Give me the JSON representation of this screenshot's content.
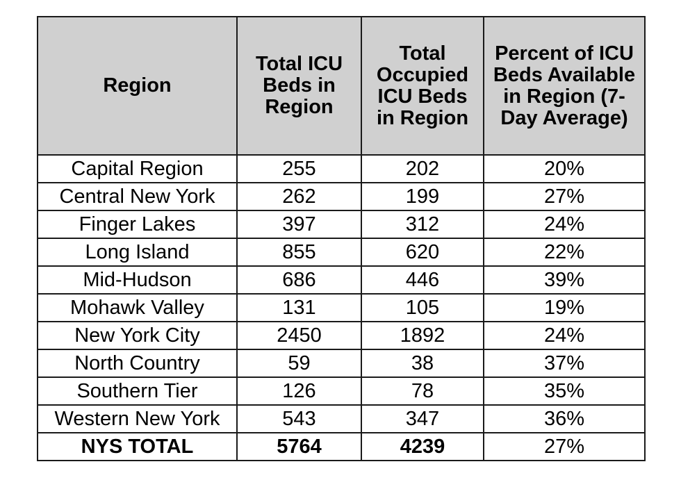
{
  "table": {
    "headers": [
      "Region",
      "Total ICU Beds in Region",
      "Total Occupied ICU Beds in Region",
      "Percent of ICU Beds Available in Region (7-Day Average)"
    ],
    "rows": [
      [
        "Capital Region",
        "255",
        "202",
        "20%"
      ],
      [
        "Central New York",
        "262",
        "199",
        "27%"
      ],
      [
        "Finger Lakes",
        "397",
        "312",
        "24%"
      ],
      [
        "Long Island",
        "855",
        "620",
        "22%"
      ],
      [
        "Mid-Hudson",
        "686",
        "446",
        "39%"
      ],
      [
        "Mohawk Valley",
        "131",
        "105",
        "19%"
      ],
      [
        "New York City",
        "2450",
        "1892",
        "24%"
      ],
      [
        "North Country",
        "59",
        "38",
        "37%"
      ],
      [
        "Southern Tier",
        "126",
        "78",
        "35%"
      ],
      [
        "Western New York",
        "543",
        "347",
        "36%"
      ]
    ],
    "total": [
      "NYS TOTAL",
      "5764",
      "4239",
      "27%"
    ]
  }
}
